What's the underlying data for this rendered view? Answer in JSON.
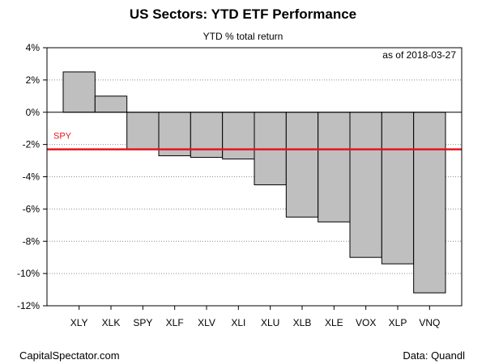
{
  "page": {
    "title": "US Sectors: YTD ETF Performance",
    "subtitle": "YTD % total return",
    "source_left": "CapitalSpectator.com",
    "source_right": "Data: Quandl",
    "as_of": "as of  2018-03-27"
  },
  "chart_data": {
    "type": "bar",
    "title": "US Sectors: YTD ETF Performance",
    "subtitle": "YTD % total return",
    "categories": [
      "XLY",
      "XLK",
      "SPY",
      "XLF",
      "XLV",
      "XLI",
      "XLU",
      "XLB",
      "XLE",
      "VOX",
      "XLP",
      "VNQ"
    ],
    "values": [
      2.5,
      1.0,
      -2.3,
      -2.7,
      -2.8,
      -2.9,
      -4.5,
      -6.5,
      -6.8,
      -9.0,
      -9.4,
      -11.2
    ],
    "ylim": [
      -12,
      4
    ],
    "yticks": [
      4,
      2,
      0,
      -2,
      -4,
      -6,
      -8,
      -10,
      -12
    ],
    "ytick_labels": [
      "4%",
      "2%",
      "0%",
      "-2%",
      "-4%",
      "-6%",
      "-8%",
      "-10%",
      "-12%"
    ],
    "grid": true,
    "reference_line": {
      "label": "SPY",
      "value": -2.3,
      "color": "#e8141b"
    },
    "bar_color": "#bfbfbf",
    "bar_edge_color": "#000000"
  }
}
